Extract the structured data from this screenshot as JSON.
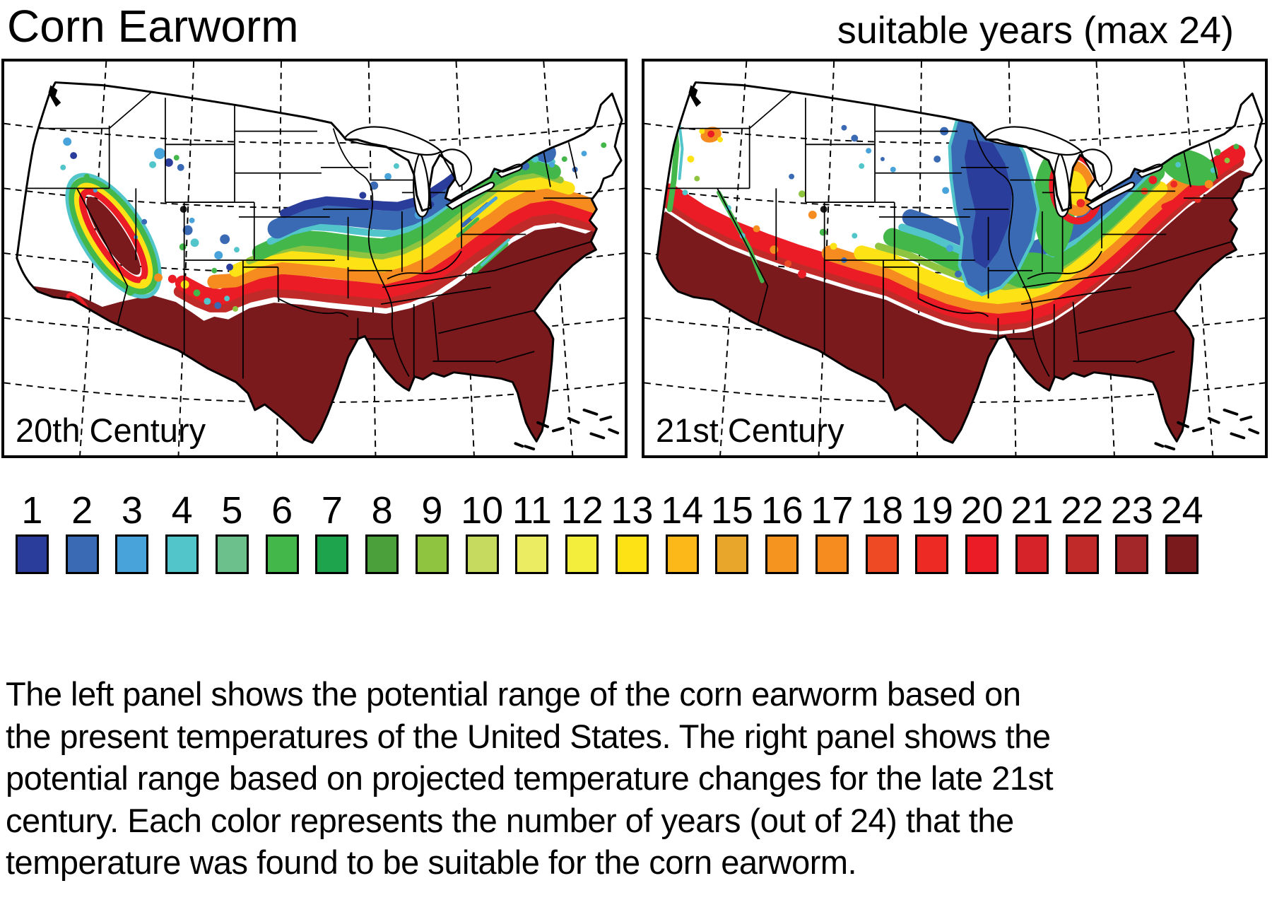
{
  "title": "Corn Earworm",
  "subtitle": "suitable years (max 24)",
  "panels": [
    {
      "label": "20th Century"
    },
    {
      "label": "21st Century"
    }
  ],
  "legend": {
    "max_value": 24,
    "items": [
      {
        "value": "1",
        "color": "#2b3d9b"
      },
      {
        "value": "2",
        "color": "#3a6ab4"
      },
      {
        "value": "3",
        "color": "#48a3da"
      },
      {
        "value": "4",
        "color": "#52c5cb"
      },
      {
        "value": "5",
        "color": "#6cc08b"
      },
      {
        "value": "6",
        "color": "#43b749"
      },
      {
        "value": "7",
        "color": "#1fa44e"
      },
      {
        "value": "8",
        "color": "#4ba03c"
      },
      {
        "value": "9",
        "color": "#8ec440"
      },
      {
        "value": "10",
        "color": "#c6da5f"
      },
      {
        "value": "11",
        "color": "#ebec61"
      },
      {
        "value": "12",
        "color": "#f3ee3b"
      },
      {
        "value": "13",
        "color": "#fde315"
      },
      {
        "value": "14",
        "color": "#fbb818"
      },
      {
        "value": "15",
        "color": "#e8a62a"
      },
      {
        "value": "16",
        "color": "#f69420"
      },
      {
        "value": "17",
        "color": "#f68b1f"
      },
      {
        "value": "18",
        "color": "#ee4a23"
      },
      {
        "value": "19",
        "color": "#ed2a24"
      },
      {
        "value": "20",
        "color": "#ec1c26"
      },
      {
        "value": "21",
        "color": "#d6232a"
      },
      {
        "value": "22",
        "color": "#c02b29"
      },
      {
        "value": "23",
        "color": "#a32628"
      },
      {
        "value": "24",
        "color": "#7a1a1c"
      }
    ]
  },
  "caption": {
    "lines": [
      "The left panel shows the potential range of the corn earworm based on",
      "the present temperatures of the United States. The right panel shows the",
      "potential range based on projected temperature changes for the late 21st",
      "century. Each color represents the number of years (out of 24) that the",
      "temperature was found to be suitable for the corn earworm."
    ]
  }
}
